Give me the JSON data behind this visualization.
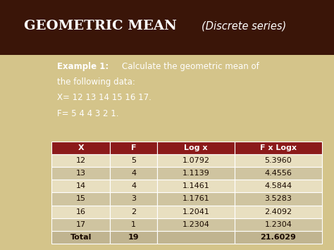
{
  "title_main": "GEOMETRIC MEAN",
  "title_sub": "(Discrete series)",
  "example_bold": "Example 1:",
  "example_rest1": " Calculate the geometric mean of",
  "example_line2": "the following data:",
  "example_line3": "X= 12 13 14 15 16 17.",
  "example_line4": "F= 5 4 4 3 2 1.",
  "header": [
    "X",
    "F",
    "Log x",
    "F x Logx"
  ],
  "rows": [
    [
      "12",
      "5",
      "1.0792",
      "5.3960"
    ],
    [
      "13",
      "4",
      "1.1139",
      "4.4556"
    ],
    [
      "14",
      "4",
      "1.1461",
      "4.5844"
    ],
    [
      "15",
      "3",
      "1.1761",
      "3.5283"
    ],
    [
      "16",
      "2",
      "1.2041",
      "2.4092"
    ],
    [
      "17",
      "1",
      "1.2304",
      "1.2304"
    ]
  ],
  "total_row": [
    "Total",
    "19",
    "",
    "21.6029"
  ],
  "bg_top": "#3a1508",
  "bg_bottom": "#d4c48a",
  "header_bg": "#8b1a1a",
  "header_text": "#ffffff",
  "row_bg_light": "#e8dfc0",
  "row_bg_dark": "#cfc4a0",
  "total_row_bg": "#c0b490",
  "title_color_main": "#ffffff",
  "title_color_sub": "#ffffff",
  "example_text_color": "#ffffff",
  "table_text_dark": "#1a0a00"
}
